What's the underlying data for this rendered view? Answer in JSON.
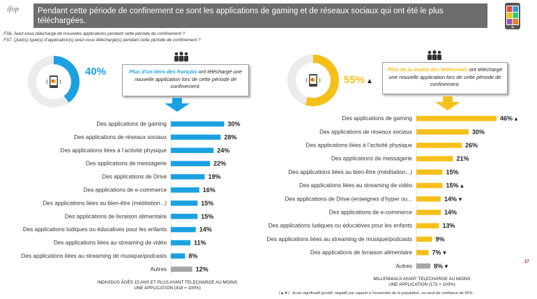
{
  "header": {
    "logo_line1": "ifop",
    "logo_line2": "",
    "title": "Pendant cette période de confinement ce sont les applications de gaming et de réseaux sociaux qui ont été le plus téléchargées."
  },
  "questions": {
    "q1": "FS6. Avez-vous téléchargé de nouvelles applications pendant cette période de confinement ?",
    "q2": "FS7. Quel(s) type(s) d’application(s) avez-vous téléchargé(s) pendant cette période de confinement ?"
  },
  "left_panel": {
    "percent_label": "40%",
    "percent_value": 40,
    "accent_color": "#1ba1e2",
    "callout_bold": "Plus d’un tiers des français",
    "callout_rest": " ont téléchargé une nouvelle application lors de cette période de confinement.",
    "footer_line1": "INDIVIDUS ÂGÉS 15 ANS ET PLUS AYANT TELECHARGE AU MOINS",
    "footer_line2": "UNE APPLICATION (418 = 100%)"
  },
  "right_panel": {
    "percent_label": "55%",
    "percent_value": 55,
    "accent_color": "#f5c01a",
    "callout_bold": "Plus de la moitié des Millennials",
    "callout_rest": " ont téléchargé une nouvelle application lors de cette période de confinement.",
    "footer_line1": "MILLENNIALS AYANT TELECHARGE AU MOINS",
    "footer_line2": "UNE APPLICATION (173 = 100%)"
  },
  "legend_note": "(▲▼) : Ecart significatif (positif, négatif) par rapport à l’ensemble de la population, au seuil de confiance de 95%",
  "page_number": "17",
  "colors": {
    "title_bg": "#6d6d6d",
    "blue": "#1ba1e2",
    "yellow": "#f5c01a",
    "other_gray": "#a6a6a6",
    "donut_bg": "#ebebeb"
  },
  "chart_data": [
    {
      "type": "bar",
      "orientation": "horizontal",
      "categories": [
        "Des applications de gaming",
        "Des applications de réseaux sociaux",
        "Des applications liées à l’activité physique",
        "Des applications de messagerie",
        "Des applications de Drive",
        "Des applications de e-commerce",
        "Des applications liées au bien-être (méditation...)",
        "Des applications de livraison alimentaire",
        "Des applications ludiques ou éducatives pour les enfants",
        "Des applications liées au streaming de vidéo",
        "Des applications liées au streaming de musique/podcasts",
        "Autres"
      ],
      "values": [
        30,
        28,
        24,
        22,
        19,
        16,
        15,
        15,
        14,
        11,
        8,
        12
      ],
      "labels": [
        "30%",
        "28%",
        "24%",
        "22%",
        "19%",
        "16%",
        "15%",
        "15%",
        "14%",
        "11%",
        "8%",
        "12%"
      ],
      "markers": [
        "",
        "",
        "",
        "",
        "",
        "",
        "",
        "",
        "",
        "",
        "",
        ""
      ],
      "bar_colors": [
        "#1ba1e2",
        "#1ba1e2",
        "#1ba1e2",
        "#1ba1e2",
        "#1ba1e2",
        "#1ba1e2",
        "#1ba1e2",
        "#1ba1e2",
        "#1ba1e2",
        "#1ba1e2",
        "#1ba1e2",
        "#a6a6a6"
      ]
    },
    {
      "type": "bar",
      "orientation": "horizontal",
      "categories": [
        "Des applications de gaming",
        "Des applications de réseaux sociaux",
        "Des applications liées à l’activité physique",
        "Des applications de messagerie",
        "Des applications liées au bien-être (méditation...)",
        "Des applications liées au streaming de vidéo",
        "Des applications de Drive (enseignes d’hyper ou...",
        "Des applications de e-commerce",
        "Des applications ludiques ou éducatives pour les enfants",
        "Des applications liées au streaming de musique/podcasts",
        "Des applications de livraison alimentaire",
        "Autres"
      ],
      "values": [
        46,
        30,
        26,
        21,
        15,
        15,
        14,
        14,
        13,
        9,
        7,
        8
      ],
      "labels": [
        "46%",
        "30%",
        "26%",
        "21%",
        "15%",
        "15%",
        "14%",
        "14%",
        "13%",
        "9%",
        "7%",
        "8%"
      ],
      "markers": [
        "▲",
        "",
        "",
        "",
        "",
        "▲",
        "▼",
        "",
        "",
        "",
        "▼",
        "▼"
      ],
      "bar_colors": [
        "#f5c01a",
        "#f5c01a",
        "#f5c01a",
        "#f5c01a",
        "#f5c01a",
        "#f5c01a",
        "#f5c01a",
        "#f5c01a",
        "#f5c01a",
        "#f5c01a",
        "#f5c01a",
        "#a6a6a6"
      ]
    }
  ]
}
